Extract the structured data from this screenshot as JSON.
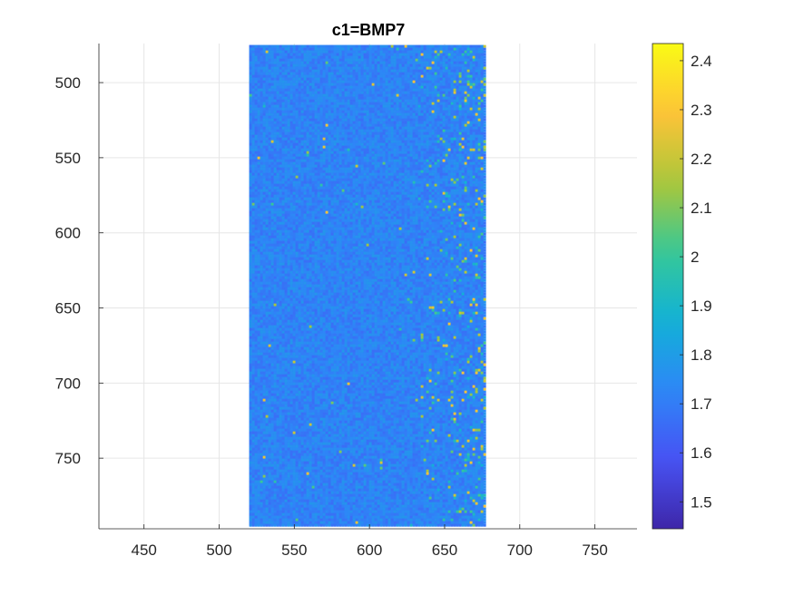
{
  "chart_data": {
    "type": "scatter",
    "title": "c1=BMP7",
    "xlabel": "",
    "ylabel": "",
    "xlim": [
      420,
      778
    ],
    "ylim": [
      474,
      797
    ],
    "y_reversed": true,
    "grid": true,
    "x_ticks": [
      450,
      500,
      550,
      600,
      650,
      700,
      750
    ],
    "y_ticks": [
      500,
      550,
      600,
      650,
      700,
      750
    ],
    "colorbar": {
      "colormap": "parula",
      "clim": [
        1.445,
        2.435
      ],
      "ticks": [
        1.5,
        1.6,
        1.7,
        1.8,
        1.9,
        2,
        2.1,
        2.2,
        2.3,
        2.4
      ],
      "tick_labels": [
        "1.5",
        "1.6",
        "1.7",
        "1.8",
        "1.9",
        "2",
        "2.1",
        "2.2",
        "2.3",
        "2.4"
      ]
    },
    "point_region": {
      "x_range": [
        520,
        676
      ],
      "y_range": [
        475,
        795
      ],
      "typical_value": 1.72,
      "higher_values_near": "right edge (x 630-676)",
      "max_value": 2.4
    }
  }
}
